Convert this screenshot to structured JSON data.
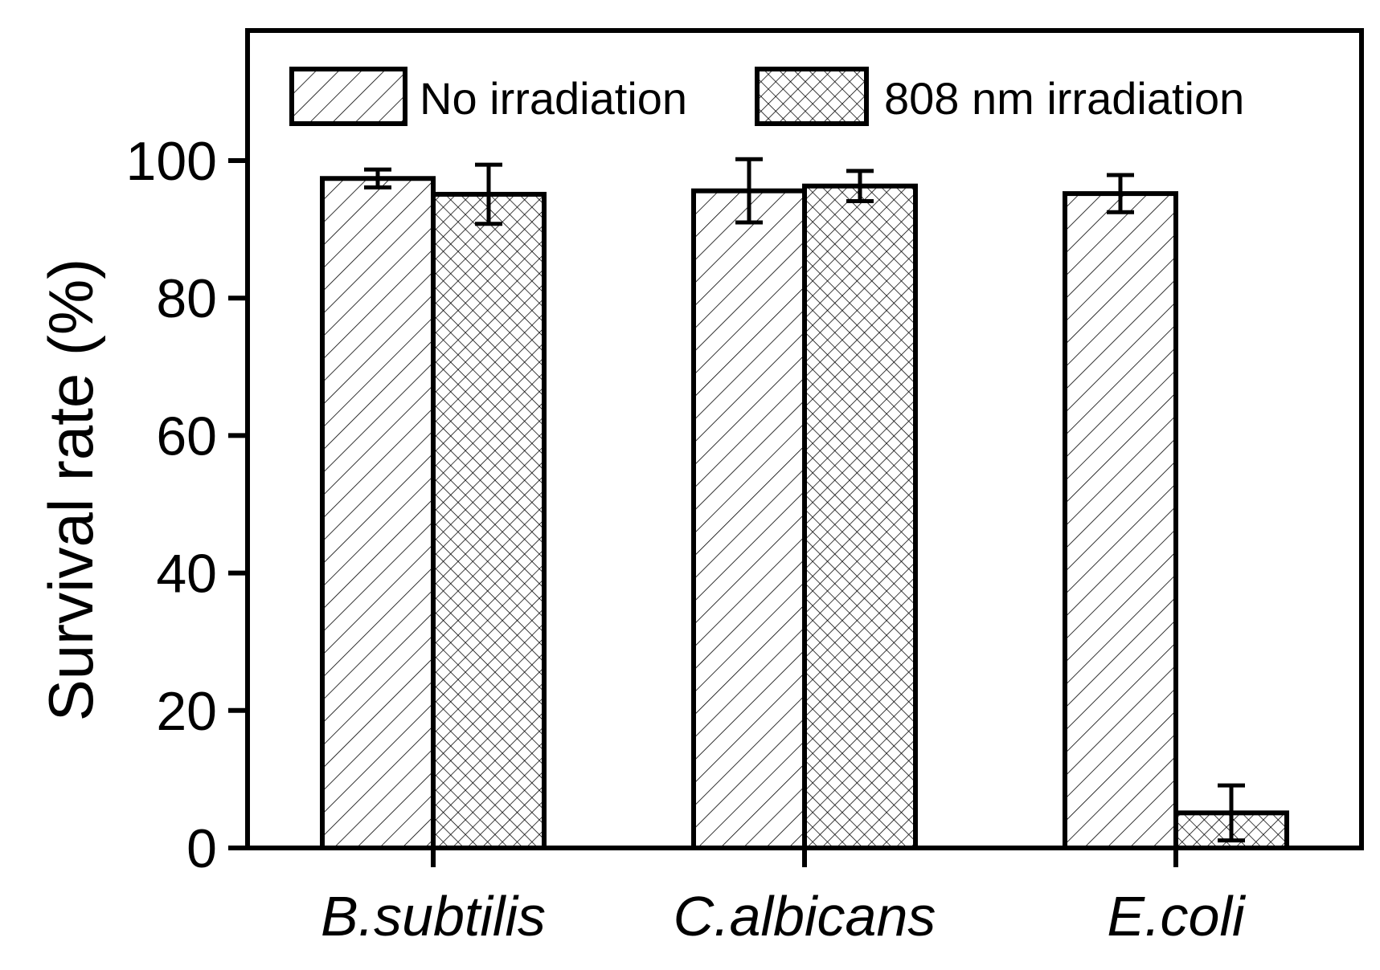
{
  "chart_data": {
    "type": "bar",
    "title": "",
    "xlabel": "",
    "ylabel": "Survival rate (%)",
    "ylim": [
      0,
      118
    ],
    "yticks": [
      "0",
      "20",
      "40",
      "60",
      "80",
      "100"
    ],
    "categories": [
      "B.subtilis",
      "C.albicans",
      "E.coli"
    ],
    "grid": false,
    "legend_placement": "top",
    "series": [
      {
        "name": "No irradiation",
        "pattern": "diagonal-hatch",
        "values": [
          97.4,
          95.6,
          95.2
        ],
        "errors": [
          1.3,
          4.6,
          2.7
        ]
      },
      {
        "name": "808 nm irradiation",
        "pattern": "cross-hatch",
        "values": [
          95.1,
          96.3,
          5.1
        ],
        "errors": [
          4.3,
          2.2,
          4.0
        ]
      }
    ],
    "colors": {
      "stroke": "#000000",
      "fill": "#ffffff"
    }
  }
}
